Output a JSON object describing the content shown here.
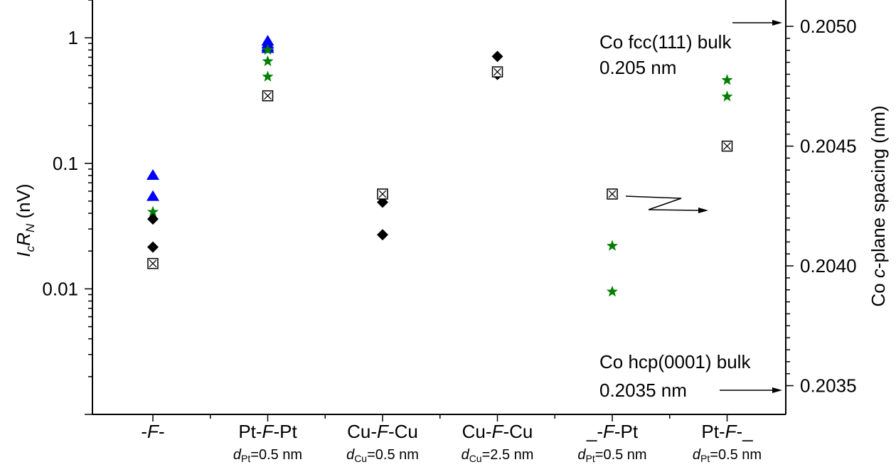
{
  "chart_data": {
    "type": "scatter",
    "title": "",
    "y_scale": "log",
    "ylim": [
      0.001,
      2
    ],
    "y2lim": [
      0.20338,
      0.20511
    ],
    "y_ticks": [
      {
        "value": 0.01,
        "label": "0.01"
      },
      {
        "value": 0.1,
        "label": "0.1"
      },
      {
        "value": 1,
        "label": "1"
      }
    ],
    "y2_ticks": [
      {
        "value": 0.2035,
        "label": "0.2035"
      },
      {
        "value": 0.204,
        "label": "0.2040"
      },
      {
        "value": 0.2045,
        "label": "0.2045"
      },
      {
        "value": 0.205,
        "label": "0.2050"
      }
    ],
    "ylabel": {
      "main_1": "I",
      "sub_1": "c",
      "main_2": "R",
      "sub_2": "N",
      "rest": " (nV)"
    },
    "y2label": {
      "pre": "Co ",
      "italic": "c",
      "post": "-plane spacing (nm)"
    },
    "categories": [
      {
        "line1_a": "-",
        "line1_italic": "F",
        "line1_b": "-",
        "line2_d": "",
        "line2_sub": "",
        "line2_rest": ""
      },
      {
        "line1_a": "Pt-",
        "line1_italic": "F",
        "line1_b": "-Pt",
        "line2_d": "d",
        "line2_sub": "Pt",
        "line2_rest": "=0.5 nm"
      },
      {
        "line1_a": "Cu-",
        "line1_italic": "F",
        "line1_b": "-Cu",
        "line2_d": "d",
        "line2_sub": "Cu",
        "line2_rest": "=0.5 nm"
      },
      {
        "line1_a": "Cu-",
        "line1_italic": "F",
        "line1_b": "-Cu",
        "line2_d": "d",
        "line2_sub": "Cu",
        "line2_rest": "=2.5 nm"
      },
      {
        "line1_a": "_-",
        "line1_italic": "F",
        "line1_b": "-Pt",
        "line2_d": "d",
        "line2_sub": "Pt",
        "line2_rest": "=0.5 nm"
      },
      {
        "line1_a": "Pt-",
        "line1_italic": "F",
        "line1_b": "-_",
        "line2_d": "d",
        "line2_sub": "Pt",
        "line2_rest": "=0.5 nm"
      }
    ],
    "series": [
      {
        "marker": "triangle",
        "color": "#0000ff",
        "axis": "left",
        "points": [
          [
            0,
            0.081
          ],
          [
            0,
            0.055
          ],
          [
            1,
            0.95
          ],
          [
            1,
            0.9
          ],
          [
            1,
            0.86
          ],
          [
            1,
            0.83
          ]
        ]
      },
      {
        "marker": "star",
        "color": "#007f00",
        "axis": "left",
        "points": [
          [
            0,
            0.041
          ],
          [
            1,
            0.8
          ],
          [
            1,
            0.65
          ],
          [
            1,
            0.49
          ],
          [
            4,
            0.022
          ],
          [
            4,
            0.0095
          ],
          [
            5,
            0.46
          ],
          [
            5,
            0.34
          ]
        ]
      },
      {
        "marker": "diamond",
        "color": "#000000",
        "axis": "left",
        "points": [
          [
            0,
            0.036
          ],
          [
            0,
            0.0215
          ],
          [
            2,
            0.049
          ],
          [
            2,
            0.027
          ],
          [
            3,
            0.71
          ],
          [
            3,
            0.51
          ]
        ]
      },
      {
        "marker": "boxed-x",
        "color": "#000000",
        "axis": "right",
        "points": [
          [
            0,
            0.20401
          ],
          [
            1,
            0.20471
          ],
          [
            2,
            0.2043
          ],
          [
            3,
            0.20481
          ],
          [
            4,
            0.2043
          ],
          [
            5,
            0.2045
          ]
        ]
      }
    ],
    "annotations": [
      {
        "line1": "Co fcc(111) bulk",
        "line2": "0.205 nm"
      },
      {
        "line1": "Co hcp(0001) bulk",
        "line2": "0.2035 nm"
      }
    ]
  }
}
